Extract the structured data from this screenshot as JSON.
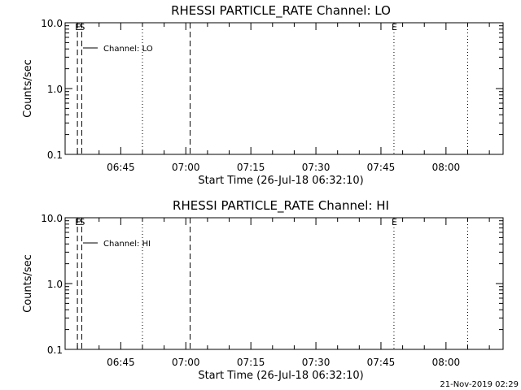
{
  "footer_timestamp": "21-Nov-2019 02:29",
  "chart_data": [
    {
      "type": "line",
      "title": "RHESSI PARTICLE_RATE Channel: LO",
      "xlabel": "Start Time (26-Jul-18 06:32:10)",
      "ylabel": "Counts/sec",
      "yscale": "log",
      "ylim": [
        0.1,
        10.0
      ],
      "xlim": [
        "06:32:10",
        "08:13:10"
      ],
      "y_ticks": [
        0.1,
        1.0,
        10.0
      ],
      "y_tick_labels": [
        "0.1",
        "1.0",
        "10.0"
      ],
      "x_ticks": [
        "06:45",
        "07:00",
        "07:15",
        "07:30",
        "07:45",
        "08:00"
      ],
      "series": [
        {
          "name": "Channel: LO",
          "values": []
        }
      ],
      "legend": "upper-left",
      "markers": [
        {
          "time": "06:35:00",
          "style": "dashed",
          "label": "E"
        },
        {
          "time": "06:36:00",
          "style": "dashed",
          "label": "S"
        },
        {
          "time": "06:50:00",
          "style": "dotted",
          "label": ""
        },
        {
          "time": "07:01:00",
          "style": "dashed",
          "label": ""
        },
        {
          "time": "07:48:00",
          "style": "dotted",
          "label": "E"
        },
        {
          "time": "08:05:00",
          "style": "dotted",
          "label": ""
        }
      ]
    },
    {
      "type": "line",
      "title": "RHESSI PARTICLE_RATE Channel: HI",
      "xlabel": "Start Time (26-Jul-18 06:32:10)",
      "ylabel": "Counts/sec",
      "yscale": "log",
      "ylim": [
        0.1,
        10.0
      ],
      "xlim": [
        "06:32:10",
        "08:13:10"
      ],
      "y_ticks": [
        0.1,
        1.0,
        10.0
      ],
      "y_tick_labels": [
        "0.1",
        "1.0",
        "10.0"
      ],
      "x_ticks": [
        "06:45",
        "07:00",
        "07:15",
        "07:30",
        "07:45",
        "08:00"
      ],
      "series": [
        {
          "name": "Channel: HI",
          "values": []
        }
      ],
      "legend": "upper-left",
      "markers": [
        {
          "time": "06:35:00",
          "style": "dashed",
          "label": "E"
        },
        {
          "time": "06:36:00",
          "style": "dashed",
          "label": "S"
        },
        {
          "time": "06:50:00",
          "style": "dotted",
          "label": ""
        },
        {
          "time": "07:01:00",
          "style": "dashed",
          "label": ""
        },
        {
          "time": "07:48:00",
          "style": "dotted",
          "label": "E"
        },
        {
          "time": "08:05:00",
          "style": "dotted",
          "label": ""
        }
      ]
    }
  ]
}
